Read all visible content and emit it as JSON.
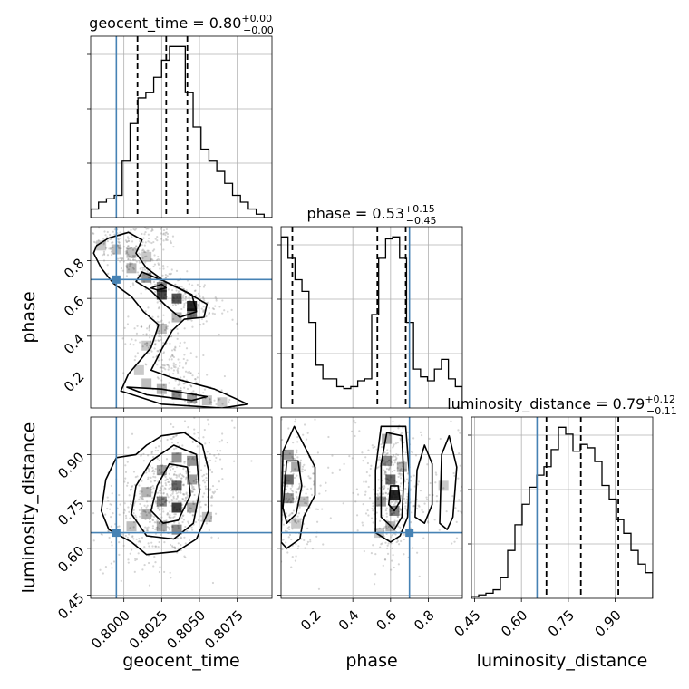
{
  "chart_data": {
    "type": "corner",
    "parameters": [
      {
        "name": "geocent_time",
        "range": [
          0.7978,
          0.8098
        ],
        "median": 0.8028,
        "quantiles": [
          0.8009,
          0.8028,
          0.8042
        ],
        "injection": 0.7995,
        "title": {
          "label": "geocent_time",
          "value": "0.80",
          "plus": "+0.00",
          "minus": "−0.00"
        },
        "ticks": [
          0.8,
          0.8025,
          0.805,
          0.8075
        ],
        "tick_labels": [
          "0.8000",
          "0.8025",
          "0.8050",
          "0.8075"
        ],
        "hist": [
          5,
          9,
          11,
          13,
          33,
          55,
          70,
          73,
          82,
          92,
          100,
          100,
          73,
          53,
          40,
          33,
          27,
          20,
          13,
          9,
          5,
          2,
          0
        ]
      },
      {
        "name": "phase",
        "range": [
          0.02,
          0.98
        ],
        "median": 0.53,
        "quantiles": [
          0.08,
          0.53,
          0.68
        ],
        "injection": 0.7,
        "title": {
          "label": "phase",
          "value": "0.53",
          "plus": "+0.15",
          "minus": "−0.45"
        },
        "ticks": [
          0.2,
          0.4,
          0.6,
          0.8
        ],
        "tick_labels": [
          "0.2",
          "0.4",
          "0.6",
          "0.8"
        ],
        "hist": [
          88,
          77,
          66,
          60,
          44,
          22,
          15,
          15,
          11,
          10,
          11,
          14,
          15,
          48,
          77,
          87,
          88,
          77,
          44,
          20,
          16,
          14,
          20,
          25,
          15,
          11
        ]
      },
      {
        "name": "luminosity_distance",
        "range": [
          0.44,
          1.02
        ],
        "median": 0.79,
        "quantiles": [
          0.68,
          0.79,
          0.91
        ],
        "injection": 0.65,
        "title": {
          "label": "luminosity_distance",
          "value": "0.79",
          "plus": "+0.12",
          "minus": "−0.11"
        },
        "ticks": [
          0.45,
          0.6,
          0.75,
          0.9
        ],
        "tick_labels": [
          "0.45",
          "0.60",
          "0.75",
          "0.90"
        ],
        "hist": [
          1,
          2,
          3,
          5,
          12,
          28,
          43,
          55,
          65,
          72,
          77,
          87,
          100,
          96,
          86,
          90,
          88,
          80,
          66,
          58,
          46,
          38,
          28,
          20,
          15
        ]
      }
    ],
    "hexes_2d": {
      "time_phase": [
        {
          "x": 0.7985,
          "y": 0.88,
          "z": 0.25
        },
        {
          "x": 0.7995,
          "y": 0.86,
          "z": 0.3
        },
        {
          "x": 0.8005,
          "y": 0.84,
          "z": 0.3
        },
        {
          "x": 0.8015,
          "y": 0.82,
          "z": 0.25
        },
        {
          "x": 0.8005,
          "y": 0.76,
          "z": 0.35
        },
        {
          "x": 0.8015,
          "y": 0.71,
          "z": 0.5
        },
        {
          "x": 0.8025,
          "y": 0.66,
          "z": 0.6
        },
        {
          "x": 0.8025,
          "y": 0.62,
          "z": 0.85
        },
        {
          "x": 0.8035,
          "y": 0.6,
          "z": 0.8
        },
        {
          "x": 0.8045,
          "y": 0.56,
          "z": 1.0
        },
        {
          "x": 0.8045,
          "y": 0.52,
          "z": 0.65
        },
        {
          "x": 0.8035,
          "y": 0.5,
          "z": 0.35
        },
        {
          "x": 0.8025,
          "y": 0.44,
          "z": 0.3
        },
        {
          "x": 0.8015,
          "y": 0.35,
          "z": 0.25
        },
        {
          "x": 0.801,
          "y": 0.22,
          "z": 0.25
        },
        {
          "x": 0.8015,
          "y": 0.15,
          "z": 0.3
        },
        {
          "x": 0.8025,
          "y": 0.12,
          "z": 0.35
        },
        {
          "x": 0.8035,
          "y": 0.09,
          "z": 0.55
        },
        {
          "x": 0.8045,
          "y": 0.07,
          "z": 0.45
        },
        {
          "x": 0.8055,
          "y": 0.06,
          "z": 0.3
        },
        {
          "x": 0.8065,
          "y": 0.05,
          "z": 0.25
        }
      ],
      "time_dist": [
        {
          "x": 0.8015,
          "y": 0.78,
          "z": 0.35
        },
        {
          "x": 0.8015,
          "y": 0.71,
          "z": 0.35
        },
        {
          "x": 0.8025,
          "y": 0.85,
          "z": 0.45
        },
        {
          "x": 0.8025,
          "y": 0.75,
          "z": 0.55
        },
        {
          "x": 0.8025,
          "y": 0.67,
          "z": 0.4
        },
        {
          "x": 0.8035,
          "y": 0.89,
          "z": 0.5
        },
        {
          "x": 0.8035,
          "y": 0.8,
          "z": 0.7
        },
        {
          "x": 0.8035,
          "y": 0.73,
          "z": 0.9
        },
        {
          "x": 0.8035,
          "y": 0.66,
          "z": 0.55
        },
        {
          "x": 0.8045,
          "y": 0.88,
          "z": 0.5
        },
        {
          "x": 0.8045,
          "y": 0.82,
          "z": 0.45
        },
        {
          "x": 0.8045,
          "y": 0.73,
          "z": 0.4
        },
        {
          "x": 0.8005,
          "y": 0.67,
          "z": 0.3
        },
        {
          "x": 0.8055,
          "y": 0.7,
          "z": 0.3
        }
      ],
      "phase_dist": [
        {
          "x": 0.06,
          "y": 0.9,
          "z": 0.45
        },
        {
          "x": 0.06,
          "y": 0.82,
          "z": 0.7
        },
        {
          "x": 0.06,
          "y": 0.76,
          "z": 0.5
        },
        {
          "x": 0.1,
          "y": 0.86,
          "z": 0.4
        },
        {
          "x": 0.14,
          "y": 0.75,
          "z": 0.3
        },
        {
          "x": 0.1,
          "y": 0.68,
          "z": 0.25
        },
        {
          "x": 0.58,
          "y": 0.95,
          "z": 0.4
        },
        {
          "x": 0.58,
          "y": 0.88,
          "z": 0.55
        },
        {
          "x": 0.6,
          "y": 0.82,
          "z": 0.7
        },
        {
          "x": 0.62,
          "y": 0.77,
          "z": 1.0
        },
        {
          "x": 0.62,
          "y": 0.72,
          "z": 0.6
        },
        {
          "x": 0.55,
          "y": 0.75,
          "z": 0.45
        },
        {
          "x": 0.6,
          "y": 0.67,
          "z": 0.35
        },
        {
          "x": 0.66,
          "y": 0.86,
          "z": 0.35
        },
        {
          "x": 0.54,
          "y": 0.65,
          "z": 0.25
        },
        {
          "x": 0.88,
          "y": 0.8,
          "z": 0.25
        }
      ]
    },
    "contours_2d": {
      "time_phase": [
        [
          [
            0.7982,
            0.88
          ],
          [
            0.799,
            0.92
          ],
          [
            0.8003,
            0.95
          ],
          [
            0.8012,
            0.91
          ],
          [
            0.8008,
            0.84
          ],
          [
            0.8015,
            0.76
          ],
          [
            0.8027,
            0.69
          ],
          [
            0.8042,
            0.63
          ],
          [
            0.8055,
            0.57
          ],
          [
            0.8053,
            0.5
          ],
          [
            0.804,
            0.49
          ],
          [
            0.8032,
            0.43
          ],
          [
            0.8025,
            0.33
          ],
          [
            0.8018,
            0.22
          ],
          [
            0.8032,
            0.18
          ],
          [
            0.806,
            0.12
          ],
          [
            0.8082,
            0.04
          ],
          [
            0.8065,
            0.02
          ],
          [
            0.8025,
            0.04
          ],
          [
            0.7998,
            0.11
          ],
          [
            0.8003,
            0.2
          ],
          [
            0.8018,
            0.34
          ],
          [
            0.8023,
            0.46
          ],
          [
            0.8013,
            0.53
          ],
          [
            0.8005,
            0.61
          ],
          [
            0.7993,
            0.68
          ],
          [
            0.7985,
            0.76
          ],
          [
            0.798,
            0.84
          ]
        ],
        [
          [
            0.8012,
            0.74
          ],
          [
            0.8027,
            0.69
          ],
          [
            0.8045,
            0.62
          ],
          [
            0.8048,
            0.53
          ],
          [
            0.8037,
            0.5
          ],
          [
            0.8028,
            0.56
          ],
          [
            0.8018,
            0.64
          ],
          [
            0.8008,
            0.69
          ]
        ],
        [
          [
            0.8018,
            0.655
          ],
          [
            0.8025,
            0.675
          ],
          [
            0.8028,
            0.655
          ],
          [
            0.8022,
            0.645
          ]
        ],
        [
          [
            0.8002,
            0.13
          ],
          [
            0.8025,
            0.12
          ],
          [
            0.8055,
            0.08
          ],
          [
            0.8045,
            0.06
          ],
          [
            0.8015,
            0.09
          ]
        ]
      ],
      "time_dist": [
        [
          [
            0.7985,
            0.72
          ],
          [
            0.7988,
            0.82
          ],
          [
            0.7995,
            0.89
          ],
          [
            0.8008,
            0.9
          ],
          [
            0.8015,
            0.93
          ],
          [
            0.8025,
            0.96
          ],
          [
            0.804,
            0.97
          ],
          [
            0.8052,
            0.93
          ],
          [
            0.8056,
            0.85
          ],
          [
            0.8056,
            0.72
          ],
          [
            0.8048,
            0.63
          ],
          [
            0.8035,
            0.59
          ],
          [
            0.8015,
            0.58
          ],
          [
            0.8005,
            0.62
          ],
          [
            0.799,
            0.66
          ]
        ],
        [
          [
            0.8005,
            0.71
          ],
          [
            0.8008,
            0.8
          ],
          [
            0.8018,
            0.88
          ],
          [
            0.8033,
            0.93
          ],
          [
            0.8048,
            0.9
          ],
          [
            0.805,
            0.78
          ],
          [
            0.8046,
            0.68
          ],
          [
            0.8033,
            0.63
          ],
          [
            0.8015,
            0.64
          ]
        ],
        [
          [
            0.8018,
            0.72
          ],
          [
            0.8022,
            0.8
          ],
          [
            0.803,
            0.87
          ],
          [
            0.8042,
            0.86
          ],
          [
            0.8044,
            0.77
          ],
          [
            0.8036,
            0.69
          ],
          [
            0.8026,
            0.68
          ]
        ]
      ],
      "phase_dist": [
        [
          [
            0.02,
            0.62
          ],
          [
            0.03,
            0.91
          ],
          [
            0.09,
            0.99
          ],
          [
            0.15,
            0.92
          ],
          [
            0.2,
            0.86
          ],
          [
            0.2,
            0.77
          ],
          [
            0.14,
            0.7
          ],
          [
            0.12,
            0.63
          ],
          [
            0.05,
            0.6
          ]
        ],
        [
          [
            0.03,
            0.73
          ],
          [
            0.05,
            0.88
          ],
          [
            0.11,
            0.88
          ],
          [
            0.13,
            0.8
          ],
          [
            0.1,
            0.71
          ],
          [
            0.05,
            0.68
          ]
        ],
        [
          [
            0.52,
            0.65
          ],
          [
            0.52,
            0.85
          ],
          [
            0.55,
            0.99
          ],
          [
            0.68,
            0.99
          ],
          [
            0.7,
            0.83
          ],
          [
            0.69,
            0.7
          ],
          [
            0.65,
            0.64
          ],
          [
            0.6,
            0.62
          ]
        ],
        [
          [
            0.55,
            0.7
          ],
          [
            0.55,
            0.87
          ],
          [
            0.58,
            0.97
          ],
          [
            0.66,
            0.96
          ],
          [
            0.67,
            0.82
          ],
          [
            0.66,
            0.7
          ],
          [
            0.62,
            0.66
          ]
        ],
        [
          [
            0.59,
            0.74
          ],
          [
            0.6,
            0.8
          ],
          [
            0.64,
            0.8
          ],
          [
            0.65,
            0.75
          ],
          [
            0.62,
            0.72
          ]
        ],
        [
          [
            0.73,
            0.7
          ],
          [
            0.74,
            0.85
          ],
          [
            0.78,
            0.93
          ],
          [
            0.82,
            0.87
          ],
          [
            0.82,
            0.74
          ],
          [
            0.78,
            0.68
          ]
        ],
        [
          [
            0.86,
            0.68
          ],
          [
            0.87,
            0.9
          ],
          [
            0.91,
            0.96
          ],
          [
            0.95,
            0.86
          ],
          [
            0.93,
            0.7
          ],
          [
            0.9,
            0.66
          ]
        ]
      ]
    },
    "colors": {
      "line": "#000000",
      "injection": "#4682b4",
      "grid": "#b0b0b0",
      "hex_dark": "#000000",
      "points": "#888888"
    }
  }
}
